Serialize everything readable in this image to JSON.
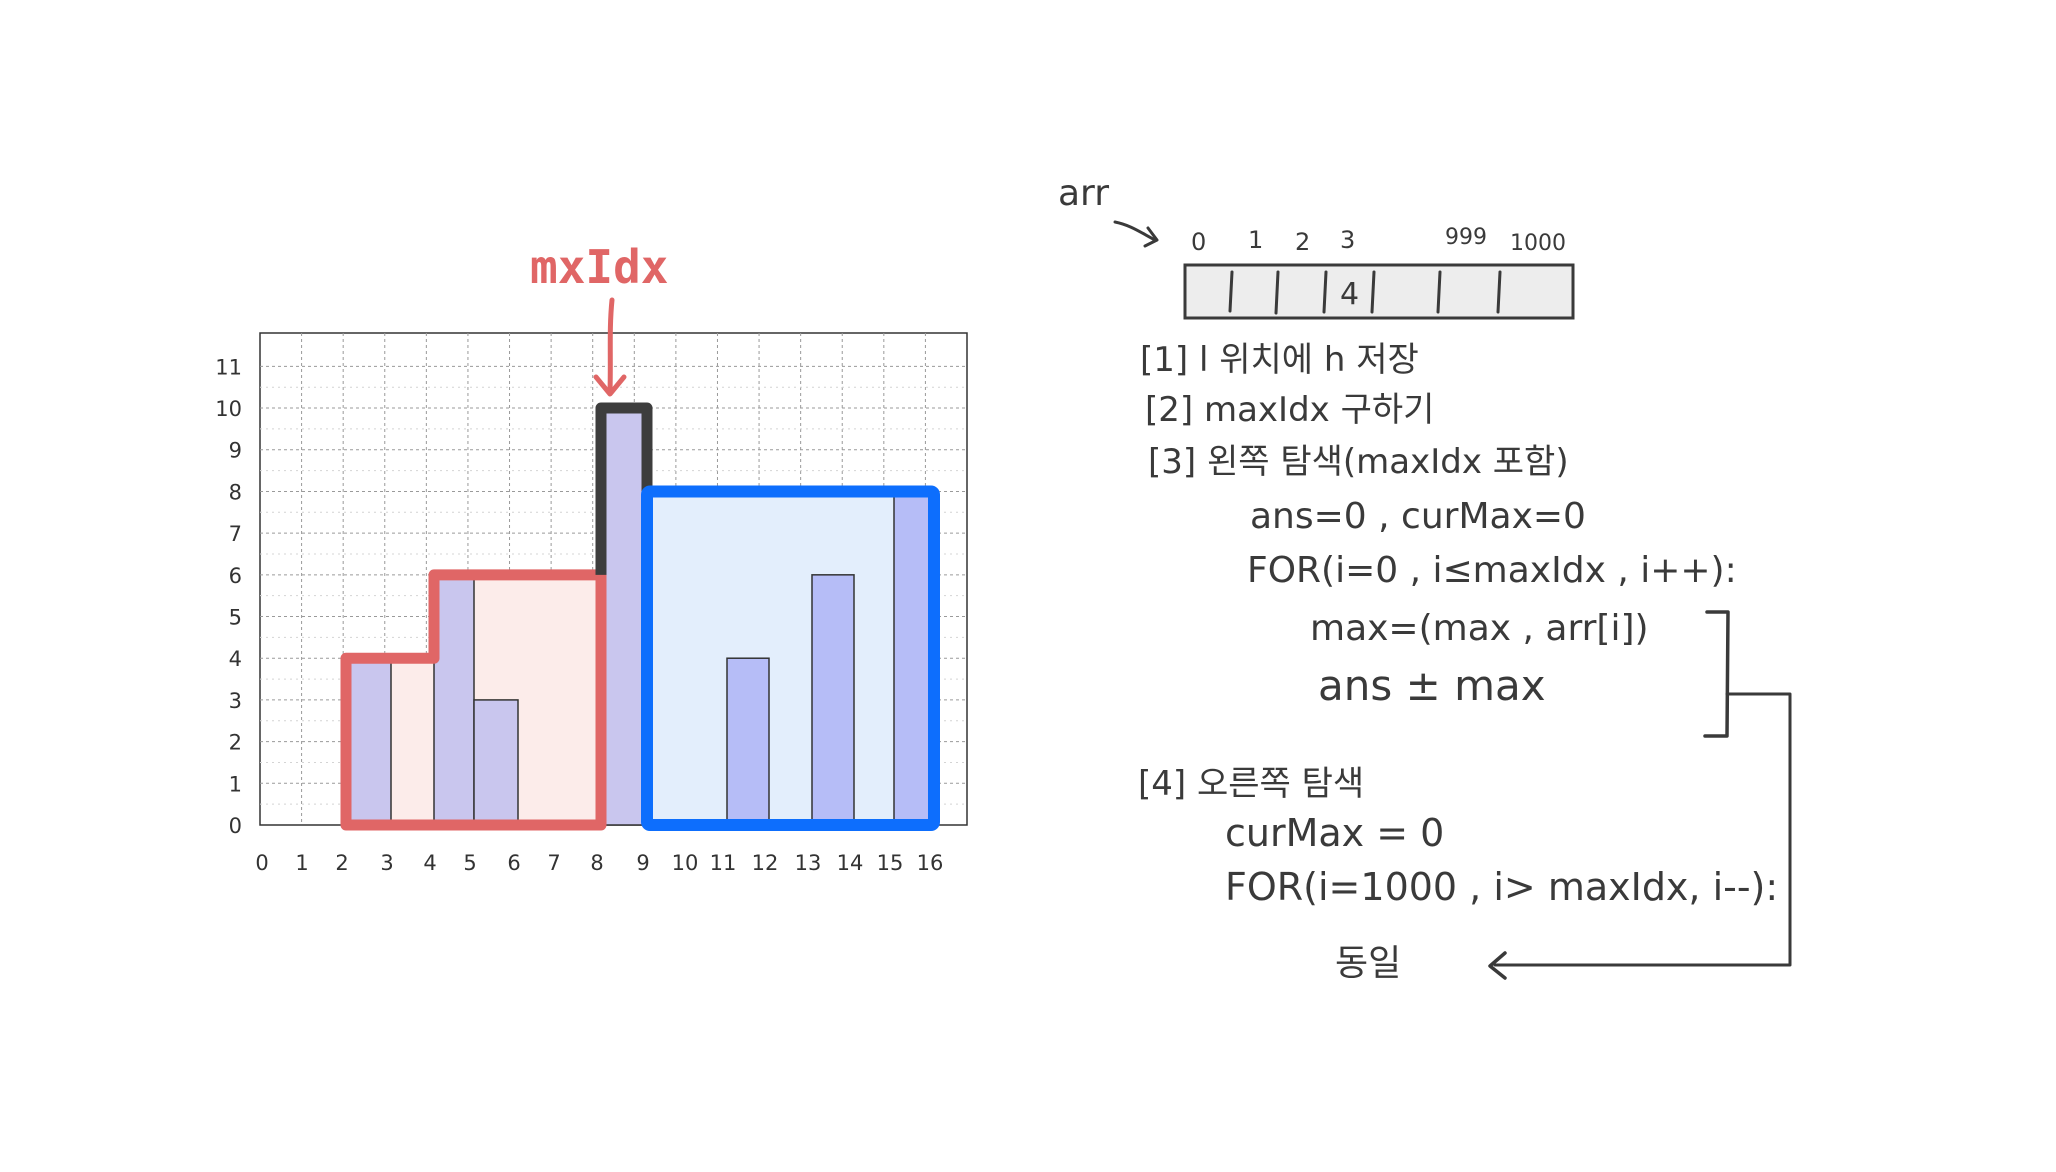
{
  "chart_data": {
    "type": "bar",
    "x_ticks": [
      "0",
      "1",
      "2",
      "3",
      "4",
      "5",
      "6",
      "7",
      "8",
      "9",
      "10",
      "11",
      "12",
      "13",
      "14",
      "15",
      "16"
    ],
    "y_ticks": [
      "0",
      "1",
      "2",
      "3",
      "4",
      "5",
      "6",
      "7",
      "8",
      "9",
      "10",
      "11"
    ],
    "ylim": [
      0,
      11.8
    ],
    "grid": true,
    "bars": [
      {
        "x": 2,
        "value": 4
      },
      {
        "x": 4,
        "value": 6
      },
      {
        "x": 5,
        "value": 3
      },
      {
        "x": 8,
        "value": 10
      },
      {
        "x": 11,
        "value": 4
      },
      {
        "x": 13,
        "value": 6
      },
      {
        "x": 15,
        "value": 8
      }
    ],
    "left_region_label": "",
    "colors": {
      "bar_fill": "#c9c6ee",
      "bar_fill_right": "#b6bdf7",
      "left_box": "#e06666",
      "left_box_fill": "#fcecea",
      "max_box": "#3d3d3d",
      "right_box": "#0d6efd",
      "right_box_fill": "#e3eefc"
    }
  },
  "annotation": {
    "max_label": "mxIdx"
  },
  "notes": {
    "arr_label": "arr",
    "index_labels": [
      "0",
      "1",
      "2",
      "3",
      "999",
      "1000"
    ],
    "cell_value": "4",
    "steps": [
      "[1] l 위치에 h 저장",
      "[2] maxIdx  구하기",
      "[3] 왼쪽 탐색(maxIdx 포함)",
      "ans=0 , curMax=0",
      "FOR(i=0 , i≤maxIdx , i++):",
      "max=(max , arr[i])",
      "ans ± max",
      "[4] 오른쪽 탐색",
      "curMax = 0",
      "FOR(i=1000 , i> maxIdx, i--):",
      "동일"
    ]
  }
}
